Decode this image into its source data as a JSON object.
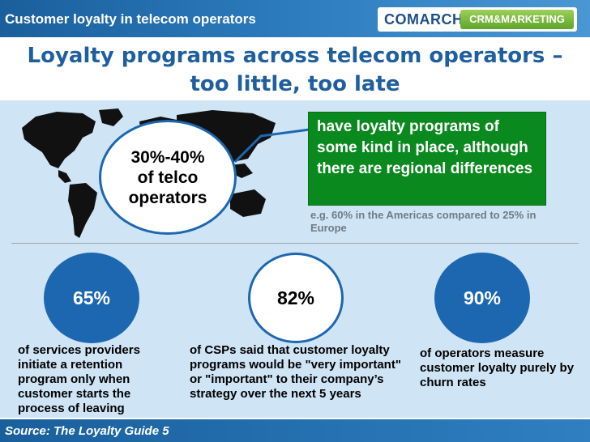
{
  "header": {
    "title": "Customer loyalty in telecom operators",
    "logo_brand": "COMARCH",
    "logo_product": "CRM&MARKETING"
  },
  "headline": "Loyalty programs across telecom operators – too little, too late",
  "main_stat": {
    "value": "30%-40%",
    "line2": "of telco",
    "line3": "operators"
  },
  "callout": "have loyalty programs of some kind in place, although there are regional differences",
  "note": "e.g. 60% in the Americas compared to 25% in Europe",
  "stats": [
    {
      "value": "65%",
      "text": "of services providers initiate a retention program only when customer starts the process of leaving"
    },
    {
      "value": "82%",
      "text": "of CSPs said that customer loyalty programs would be \"very important\" or \"important\" to their company’s strategy over the next 5 years"
    },
    {
      "value": "90%",
      "text": "of operators measure customer loyalty purely by churn rates"
    }
  ],
  "footer": "Source: The Loyalty Guide 5",
  "colors": {
    "bar_blue": "#1a5f9c",
    "accent_blue": "#1d67b0",
    "panel_blue": "#cfe4f5",
    "callout_green": "#0a8a1e",
    "headline_blue": "#1f5f9e"
  },
  "icons": [
    "world-map-icon"
  ]
}
